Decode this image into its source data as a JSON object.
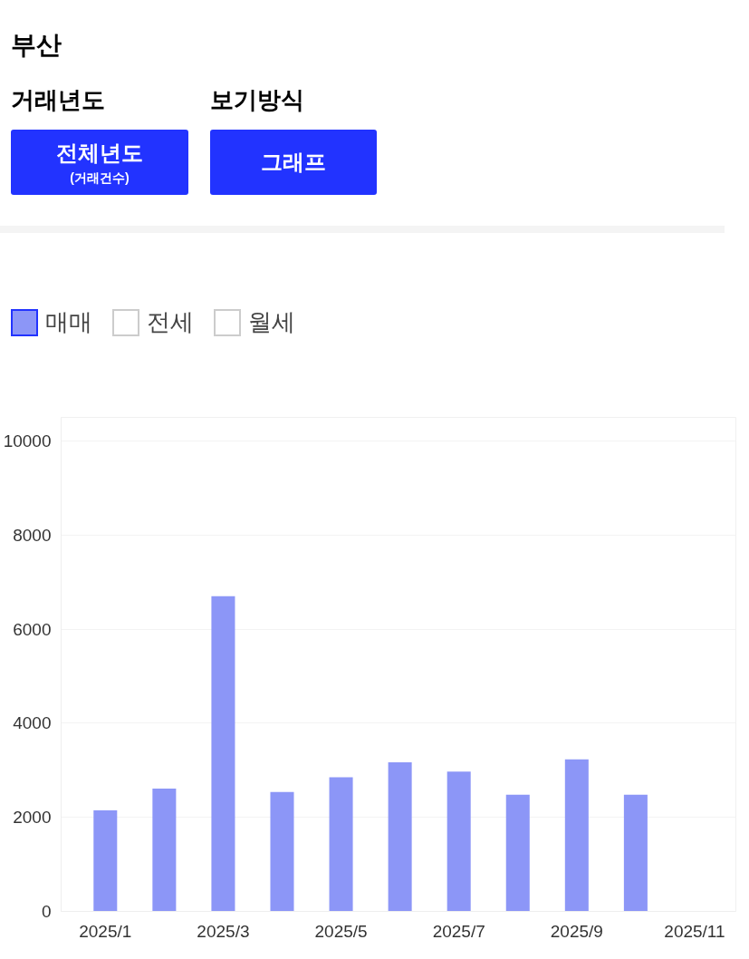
{
  "chart_data": {
    "type": "bar",
    "title": "부산",
    "annotations": [
      "거래년도",
      "보기방식",
      "전체년도",
      "(거래건수)",
      "그래프"
    ],
    "categories": [
      "2025/1",
      null,
      "2025/3",
      null,
      "2025/5",
      null,
      "2025/7",
      null,
      "2025/9",
      null,
      "2025/11"
    ],
    "series": [
      {
        "name": "매매",
        "color": "#8c96f7",
        "values": [
          2150,
          2610,
          6700,
          2540,
          2850,
          3170,
          2970,
          2480,
          3230,
          2480,
          null
        ]
      },
      {
        "name": "전세",
        "color": "#ffffff",
        "values": [
          null,
          null,
          null,
          null,
          null,
          null,
          null,
          null,
          null,
          null,
          null
        ]
      },
      {
        "name": "월세",
        "color": "#ffffff",
        "values": [
          null,
          null,
          null,
          null,
          null,
          null,
          null,
          null,
          null,
          null,
          null
        ]
      }
    ],
    "ylim": [
      0,
      10500
    ],
    "yticks": [
      0,
      2000,
      4000,
      6000,
      8000,
      10000
    ],
    "grid": "y",
    "legend": "top left"
  }
}
